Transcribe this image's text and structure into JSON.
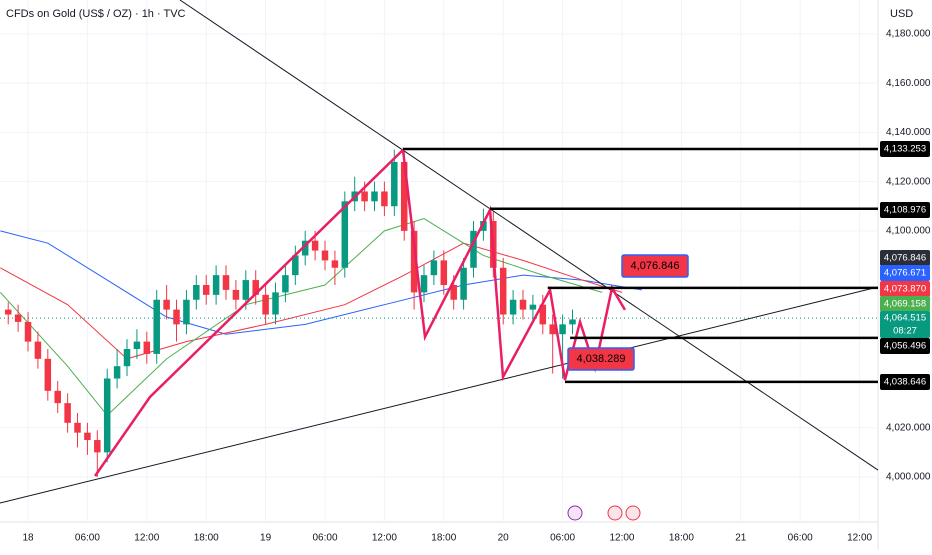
{
  "header": {
    "symbol": "CFDs on Gold (US$ / OZ) · 1h · TVC",
    "currency": "USD"
  },
  "chart_data": {
    "type": "candlestick",
    "x": [
      -2,
      -1,
      0,
      1,
      2,
      3,
      4,
      5,
      6,
      7,
      8,
      9,
      10,
      11,
      12,
      13,
      14,
      15,
      16,
      17,
      18,
      19,
      20,
      21,
      22,
      23,
      24,
      25,
      26,
      27,
      28,
      29,
      30,
      31,
      32,
      33,
      34,
      35,
      36,
      37,
      38,
      39,
      40,
      41,
      42,
      43,
      44,
      45,
      46,
      47,
      48,
      49,
      50,
      51,
      52,
      53,
      54,
      55
    ],
    "open": [
      4068,
      4066,
      4063,
      4055,
      4048,
      4035,
      4030,
      4022,
      4018,
      4015,
      4010,
      4040,
      4045,
      4052,
      4055,
      4050,
      4072,
      4068,
      4062,
      4072,
      4078,
      4074,
      4082,
      4076,
      4072,
      4080,
      4074,
      4066,
      4075,
      4082,
      4090,
      4096,
      4092,
      4088,
      4085,
      4112,
      4116,
      4112,
      4116,
      4110,
      4128,
      4100,
      4075,
      4082,
      4088,
      4078,
      4072,
      4085,
      4100,
      4104,
      4085,
      4066,
      4072,
      4068,
      4070,
      4062,
      4058,
      4062
    ],
    "high": [
      4071,
      4070,
      4067,
      4059,
      4052,
      4039,
      4034,
      4026,
      4022,
      4019,
      4044,
      4052,
      4056,
      4060,
      4059,
      4076,
      4078,
      4072,
      4076,
      4082,
      4082,
      4086,
      4086,
      4080,
      4084,
      4084,
      4078,
      4079,
      4086,
      4094,
      4100,
      4100,
      4096,
      4092,
      4116,
      4122,
      4120,
      4120,
      4120,
      4133,
      4132,
      4104,
      4086,
      4092,
      4092,
      4082,
      4089,
      4104,
      4109,
      4108,
      4089,
      4076,
      4076,
      4074,
      4074,
      4066,
      4066,
      4068
    ],
    "low": [
      4062,
      4059,
      4051,
      4044,
      4031,
      4026,
      4018,
      4012,
      4009,
      4000,
      4006,
      4036,
      4041,
      4048,
      4046,
      4046,
      4064,
      4055,
      4058,
      4068,
      4070,
      4070,
      4072,
      4068,
      4068,
      4070,
      4062,
      4062,
      4071,
      4078,
      4086,
      4088,
      4084,
      4078,
      4081,
      4108,
      4108,
      4108,
      4106,
      4106,
      4096,
      4068,
      4071,
      4078,
      4074,
      4068,
      4068,
      4081,
      4096,
      4081,
      4062,
      4062,
      4064,
      4064,
      4058,
      4042,
      4040,
      4058
    ],
    "close": [
      4066,
      4063,
      4055,
      4048,
      4035,
      4030,
      4022,
      4018,
      4015,
      4010,
      4040,
      4045,
      4052,
      4055,
      4050,
      4072,
      4068,
      4062,
      4072,
      4078,
      4074,
      4082,
      4076,
      4072,
      4080,
      4074,
      4066,
      4075,
      4082,
      4090,
      4096,
      4092,
      4088,
      4085,
      4112,
      4116,
      4112,
      4116,
      4110,
      4128,
      4100,
      4075,
      4082,
      4088,
      4078,
      4072,
      4085,
      4100,
      4104,
      4085,
      4066,
      4072,
      4068,
      4070,
      4062,
      4058,
      4062,
      4064
    ],
    "up_color": "#089981",
    "down_color": "#f23645",
    "xlim": [
      -2.83,
      85.86
    ],
    "ylim": [
      3981.7,
      4193.8
    ],
    "xticks": [
      {
        "value": 0,
        "label": "18"
      },
      {
        "value": 6,
        "label": "06:00"
      },
      {
        "value": 12,
        "label": "12:00"
      },
      {
        "value": 18,
        "label": "18:00"
      },
      {
        "value": 24,
        "label": "19"
      },
      {
        "value": 30,
        "label": "06:00"
      },
      {
        "value": 36,
        "label": "12:00"
      },
      {
        "value": 42,
        "label": "18:00"
      },
      {
        "value": 48,
        "label": "20"
      },
      {
        "value": 54,
        "label": "06:00"
      },
      {
        "value": 60,
        "label": "12:00"
      },
      {
        "value": 66,
        "label": "18:00"
      },
      {
        "value": 72,
        "label": "21"
      },
      {
        "value": 78,
        "label": "06:00"
      },
      {
        "value": 84,
        "label": "12:00"
      }
    ],
    "yticks": [
      {
        "value": 4180,
        "label": "4,180.000"
      },
      {
        "value": 4160,
        "label": "4,160.000"
      },
      {
        "value": 4140,
        "label": "4,140.000"
      },
      {
        "value": 4120,
        "label": "4,120.000"
      },
      {
        "value": 4100,
        "label": "4,100.000"
      },
      {
        "value": 4020,
        "label": "4,020.000"
      },
      {
        "value": 4000,
        "label": "4,000.000"
      }
    ],
    "grid": true,
    "overlays": [
      {
        "color": "#2962ff",
        "x": [
          -2.8,
          2,
          8,
          14,
          20,
          28,
          36,
          44,
          50,
          56,
          62
        ],
        "values": [
          4100,
          4095,
          4080,
          4065,
          4058,
          4062,
          4070,
          4078,
          4082,
          4080,
          4076
        ]
      },
      {
        "color": "#f23645",
        "x": [
          -2.8,
          4,
          10,
          16,
          24,
          32,
          38,
          44,
          50,
          56,
          60
        ],
        "values": [
          4085,
          4070,
          4048,
          4055,
          4062,
          4070,
          4082,
          4095,
          4088,
          4080,
          4075
        ]
      },
      {
        "color": "#4caf50",
        "x": [
          -2.8,
          4,
          8,
          14,
          22,
          30,
          36,
          40,
          46,
          52,
          58
        ],
        "values": [
          4075,
          4045,
          4025,
          4048,
          4070,
          4078,
          4100,
          4105,
          4090,
          4082,
          4075
        ]
      }
    ],
    "trendlines": [
      {
        "x": [
          15.35,
          85.86
        ],
        "values": [
          4193.8,
          4002.8
        ]
      },
      {
        "x": [
          -2.83,
          85.86
        ],
        "values": [
          3989.4,
          4077.2
        ]
      }
    ],
    "pattern": {
      "color": "#e91e63",
      "x": [
        6.77,
        12.32,
        37.88,
        40.1,
        46.67,
        47.98,
        52.73,
        54.24,
        55.76,
        57.27,
        58.99,
        60.3
      ],
      "values": [
        4000.4,
        4032.5,
        4132.9,
        4056.9,
        4108.5,
        4040.6,
        4076.0,
        4039.4,
        4063.0,
        4044.3,
        4076.8,
        4067.9
      ]
    },
    "levels": [
      {
        "value": 4133.253,
        "label": "4,133.253",
        "from": 37.88
      },
      {
        "value": 4108.976,
        "label": "4,108.976",
        "from": 46.67
      },
      {
        "value": 4076.846,
        "label": "4,076.846",
        "from": 52.5
      },
      {
        "value": 4056.496,
        "label": "4,056.496",
        "from": 54.76
      },
      {
        "value": 4038.646,
        "label": "4,038.646",
        "from": 54.24
      }
    ],
    "price_labels": [
      {
        "value": 4076.671,
        "label": "4,076.671",
        "color": "#2962ff"
      },
      {
        "value": 4073.87,
        "label": "4,073.870",
        "color": "#f23645"
      },
      {
        "value": 4069.158,
        "label": "4,069.158",
        "color": "#4caf50"
      }
    ],
    "current": {
      "value": 4064.515,
      "label": "4,064.515",
      "countdown": "08:27",
      "color": "#089981"
    },
    "callouts": [
      {
        "value": 4076.846,
        "label": "4,076.846"
      },
      {
        "value": 4038.289,
        "label": "4,038.289"
      }
    ]
  }
}
